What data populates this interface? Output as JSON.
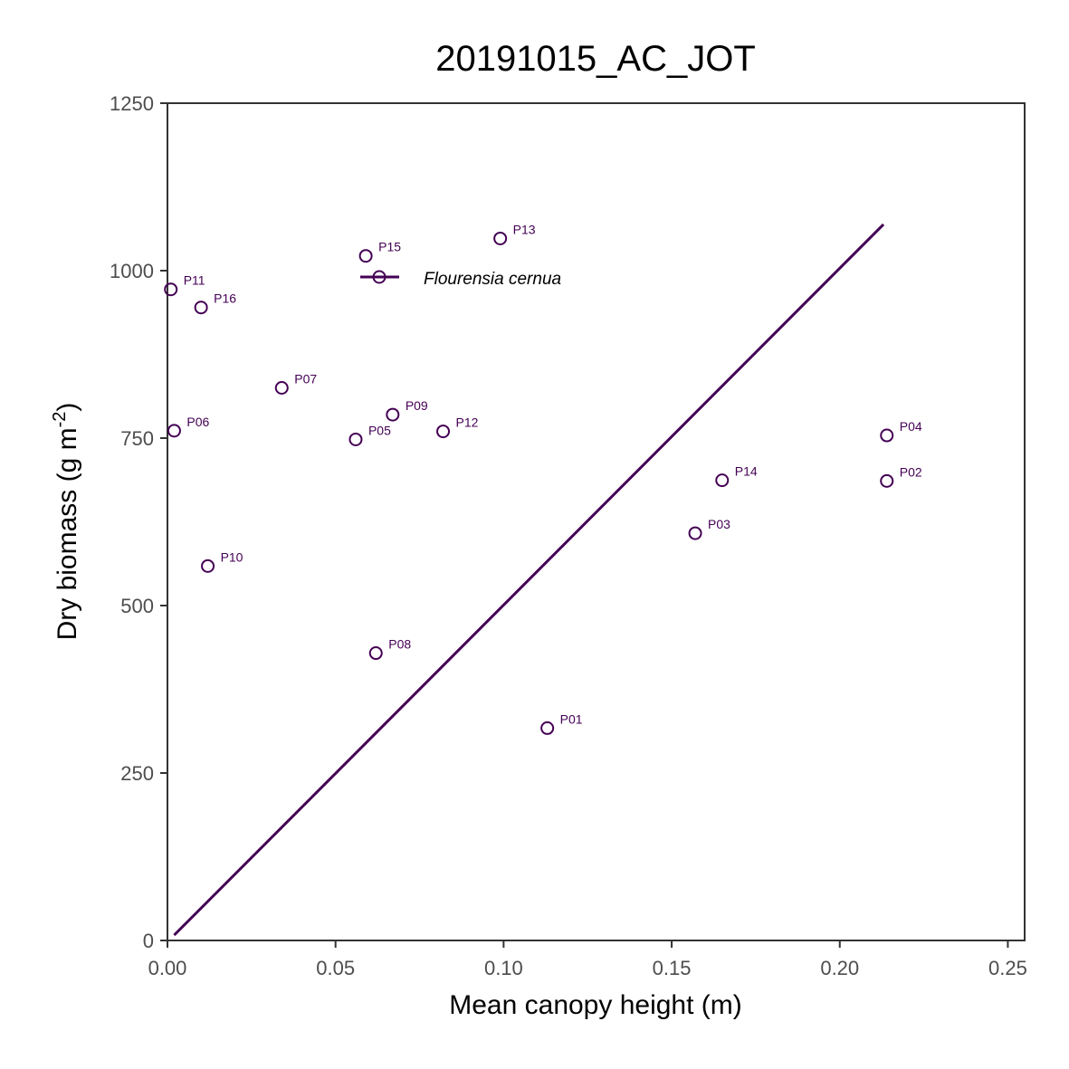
{
  "chart_data": {
    "type": "scatter",
    "title": "20191015_AC_JOT",
    "xlabel": "Mean canopy height (m)",
    "ylabel": {
      "main": "Dry biomass (g m",
      "superscript": "-2",
      "close": ")"
    },
    "xlim": [
      0,
      0.255
    ],
    "ylim": [
      0,
      1250
    ],
    "x_ticks": [
      0,
      0.05,
      0.1,
      0.15,
      0.2,
      0.25
    ],
    "x_tick_labels": [
      "0.00",
      "0.05",
      "0.10",
      "0.15",
      "0.20",
      "0.25"
    ],
    "y_ticks": [
      0,
      250,
      500,
      750,
      1000,
      1250
    ],
    "y_tick_labels": [
      "0",
      "250",
      "500",
      "750",
      "1000",
      "1250"
    ],
    "grid": false,
    "legend_position": "top-left",
    "series": [
      {
        "name": "Flourensia cernua",
        "color": "#440154",
        "marker": "open-circle",
        "points": [
          {
            "label": "P01",
            "x": 0.113,
            "y": 317
          },
          {
            "label": "P02",
            "x": 0.214,
            "y": 686
          },
          {
            "label": "P03",
            "x": 0.157,
            "y": 608
          },
          {
            "label": "P04",
            "x": 0.214,
            "y": 754
          },
          {
            "label": "P05",
            "x": 0.056,
            "y": 748
          },
          {
            "label": "P06",
            "x": 0.002,
            "y": 761
          },
          {
            "label": "P07",
            "x": 0.034,
            "y": 825
          },
          {
            "label": "P08",
            "x": 0.062,
            "y": 429
          },
          {
            "label": "P09",
            "x": 0.067,
            "y": 785
          },
          {
            "label": "P10",
            "x": 0.012,
            "y": 559
          },
          {
            "label": "P11",
            "x": 0.001,
            "y": 972
          },
          {
            "label": "P12",
            "x": 0.082,
            "y": 760
          },
          {
            "label": "P13",
            "x": 0.099,
            "y": 1048
          },
          {
            "label": "P14",
            "x": 0.165,
            "y": 687
          },
          {
            "label": "P15",
            "x": 0.059,
            "y": 1022
          },
          {
            "label": "P16",
            "x": 0.01,
            "y": 945
          }
        ],
        "fit_line": {
          "x": [
            0.002,
            0.213
          ],
          "y": [
            8,
            1069
          ]
        }
      }
    ]
  }
}
